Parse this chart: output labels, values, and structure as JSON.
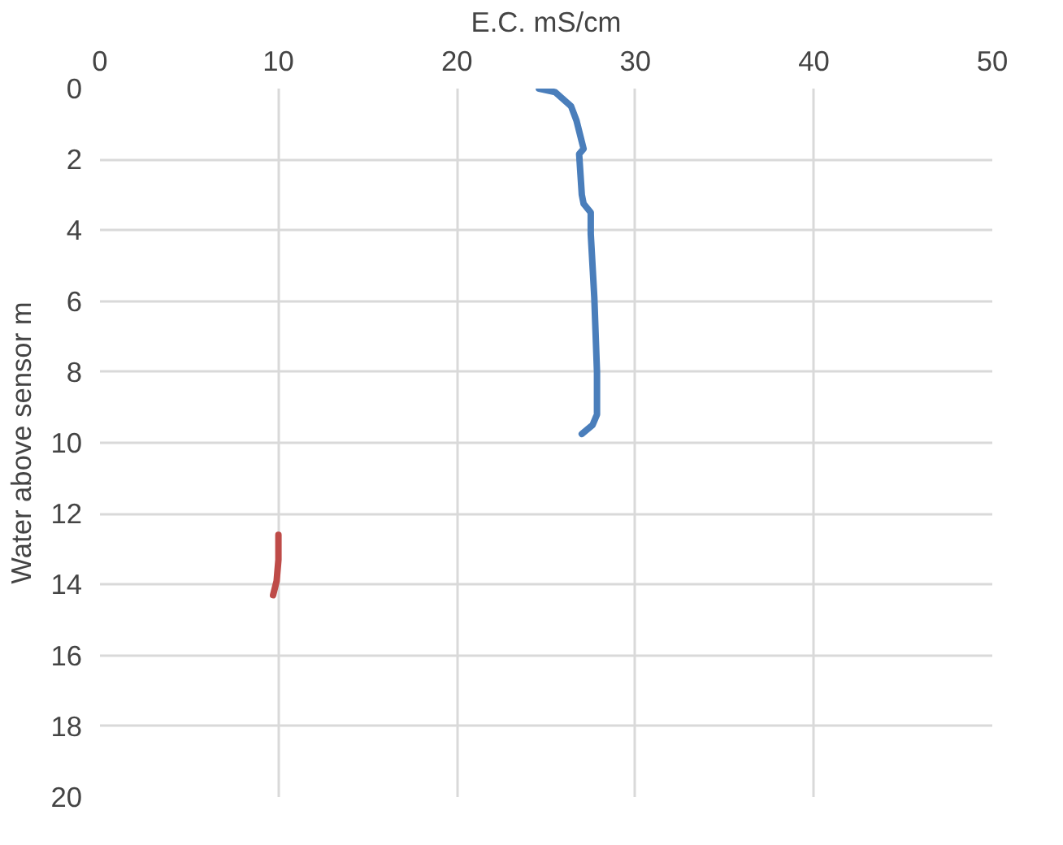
{
  "chart_data": {
    "type": "line",
    "xlabel": "E.C. mS/cm",
    "ylabel": "Water above sensor m",
    "xlim": [
      0,
      50
    ],
    "xticks": [
      0,
      10,
      20,
      30,
      40,
      50
    ],
    "ylim": [
      20,
      0
    ],
    "yticks": [
      0,
      2,
      4,
      6,
      8,
      10,
      12,
      14,
      16,
      18,
      20
    ],
    "grid": true,
    "marker": "none",
    "line_style": "solid",
    "series": [
      {
        "color": "#4a7ebb",
        "x": [
          24.6,
          25.5,
          26.4,
          26.7,
          27.0,
          27.1,
          26.85,
          27.0,
          27.1,
          27.5,
          27.5,
          27.7,
          27.85,
          27.85,
          27.6,
          27.0
        ],
        "values": [
          0,
          0.1,
          0.5,
          0.9,
          1.5,
          1.7,
          1.85,
          3.0,
          3.25,
          3.5,
          4.1,
          5.9,
          8.0,
          9.2,
          9.5,
          9.75
        ]
      },
      {
        "color": "#be4b48",
        "x": [
          10.0,
          10.0,
          9.9,
          9.7
        ],
        "values": [
          12.6,
          13.3,
          13.9,
          14.3
        ]
      }
    ]
  }
}
